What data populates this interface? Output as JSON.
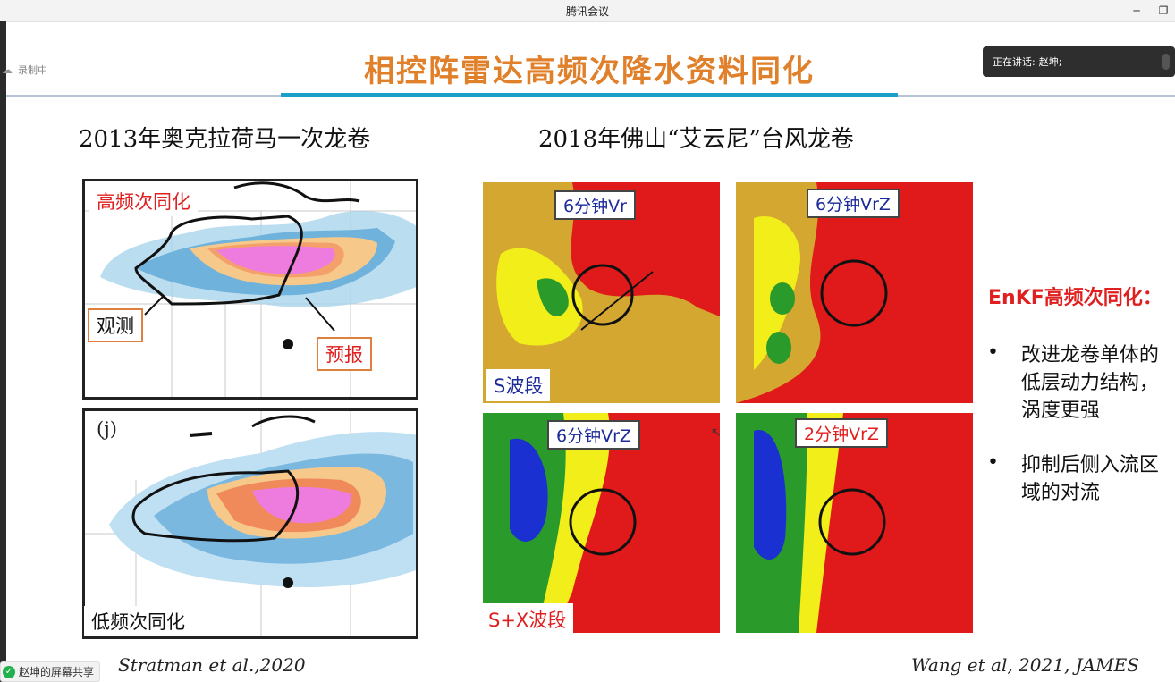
{
  "window": {
    "app_title": "腾讯会议",
    "minimize": "─",
    "restore": "❐"
  },
  "meeting": {
    "recording": "录制中",
    "speaking_prefix": "正在讲话:",
    "speaker": "赵坤;",
    "share_label": "赵坤的屏幕共享"
  },
  "slide": {
    "title": "相控阵雷达高频次降水资料同化",
    "left_heading": "2013年奥克拉荷马一次龙卷",
    "right_heading": "2018年佛山“艾云尼”台风龙卷",
    "left_maps": {
      "top_label": "高频次同化",
      "obs_label": "观测",
      "fcst_label": "预报",
      "panel_j": "(j)",
      "bottom_label": "低频次同化"
    },
    "right_panels": [
      {
        "label": "6分钟Vr"
      },
      {
        "label": "6分钟VrZ"
      },
      {
        "label": "6分钟VrZ"
      },
      {
        "label": "2分钟VrZ"
      }
    ],
    "band_s": "S波段",
    "band_sx": "S+X波段",
    "enkf_title": "EnKF高频次同化：",
    "bullets": [
      {
        "dot": "•",
        "text": "改进龙卷单体的低层动力结构，涡度更强"
      },
      {
        "dot": "•",
        "text": "抑制后侧入流区域的对流"
      }
    ],
    "cite_left": "Stratman et al.,2020",
    "cite_right": "Wang et al, 2021, JAMES"
  },
  "colors": {
    "title": "#e0802a",
    "accent_rule": "#1aa0c8",
    "enkf_red": "#e02020",
    "panel_label_blue": "#1c2a9a"
  }
}
